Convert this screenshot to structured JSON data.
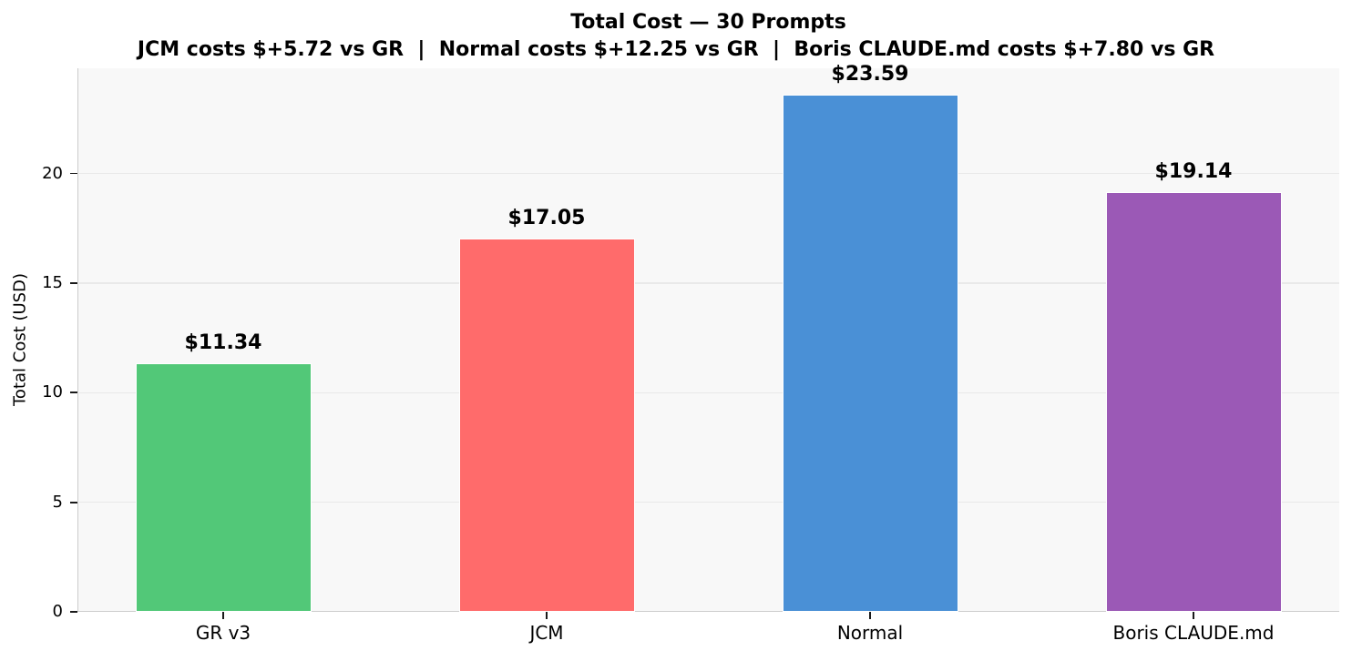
{
  "chart_data": {
    "type": "bar",
    "title": "Total Cost — 30 Prompts",
    "subtitle": "JCM costs $+5.72 vs GR  |  Normal costs $+12.25 vs GR  |  Boris CLAUDE.md costs $+7.80 vs GR",
    "categories": [
      "GR v3",
      "JCM",
      "Normal",
      "Boris CLAUDE.md"
    ],
    "values": [
      11.34,
      17.05,
      23.59,
      19.14
    ],
    "value_labels": [
      "$11.34",
      "$17.05",
      "$23.59",
      "$19.14"
    ],
    "bar_colors": [
      "#52c878",
      "#ff6b6b",
      "#4a90d6",
      "#9b59b6"
    ],
    "xlabel": "",
    "ylabel": "Total Cost (USD)",
    "yticks": [
      0,
      5,
      10,
      15,
      20
    ],
    "ylim": [
      0,
      24.8
    ],
    "grid": true,
    "legend": "none",
    "panel_background": "#f8f8f8",
    "gridline_color": "#e9e9e9",
    "spine_color": "#cccccc"
  }
}
